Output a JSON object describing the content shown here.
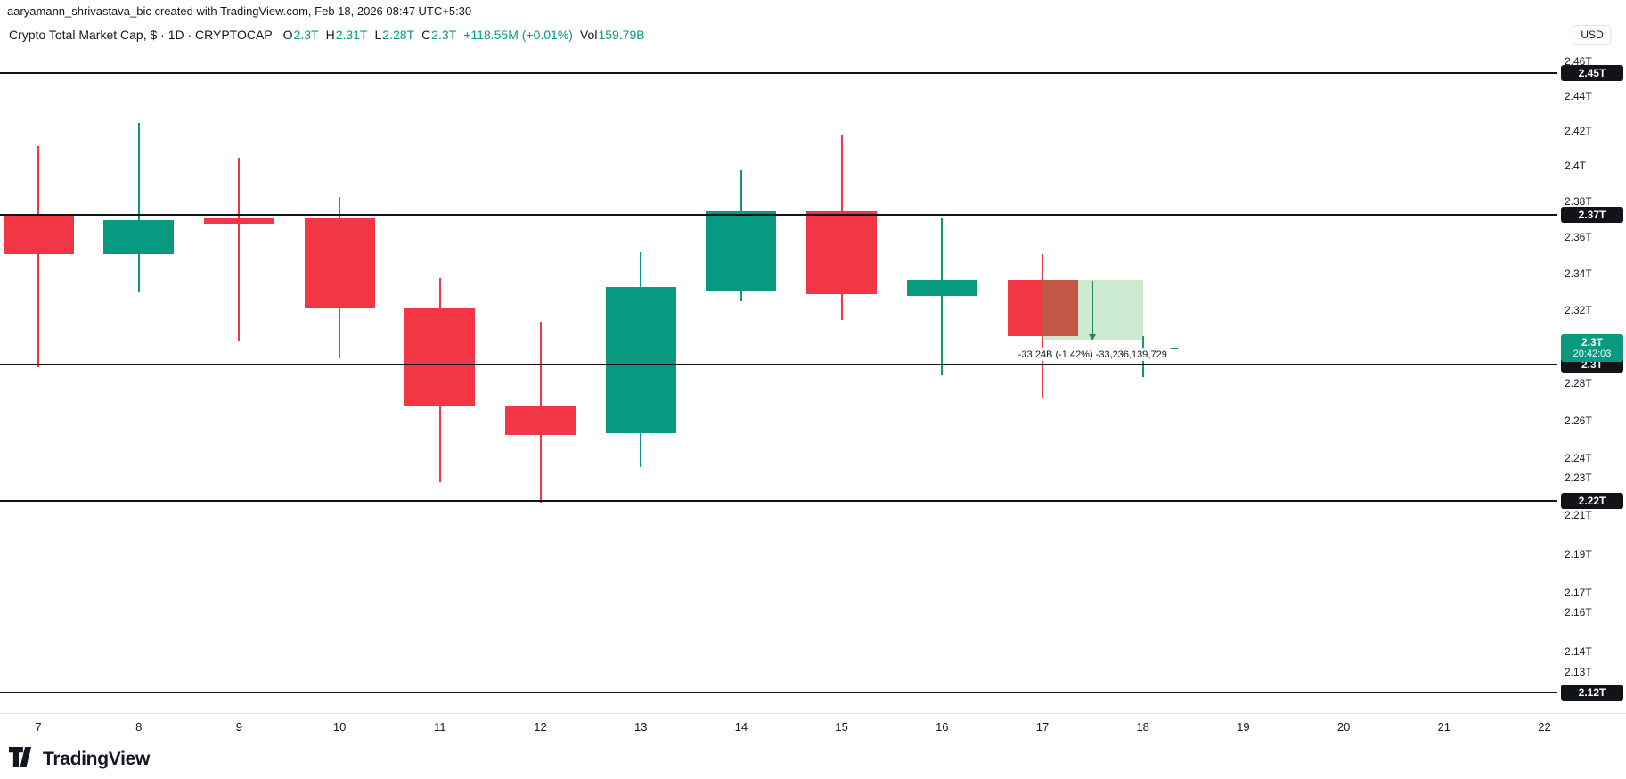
{
  "attribution": "aaryamann_shrivastava_bic created with TradingView.com, Feb 18, 2026 08:47 UTC+5:30",
  "legend": {
    "title": "Crypto Total Market Cap, $ · 1D · CRYPTOCAP",
    "o_label": "O",
    "o_value": "2.3T",
    "h_label": "H",
    "h_value": "2.31T",
    "l_label": "L",
    "l_value": "2.28T",
    "c_label": "C",
    "c_value": "2.3T",
    "change": "+118.55M (+0.01%)",
    "vol_label": "Vol",
    "vol_value": "159.79B"
  },
  "price_scale": {
    "currency": "USD",
    "ticks": [
      {
        "price": 2.46,
        "text": "2.46T"
      },
      {
        "price": 2.44,
        "text": "2.44T"
      },
      {
        "price": 2.42,
        "text": "2.42T"
      },
      {
        "price": 2.4,
        "text": "2.4T"
      },
      {
        "price": 2.38,
        "text": "2.38T"
      },
      {
        "price": 2.36,
        "text": "2.36T"
      },
      {
        "price": 2.34,
        "text": "2.34T"
      },
      {
        "price": 2.32,
        "text": "2.32T"
      },
      {
        "price": 2.3,
        "text": "2.3T"
      },
      {
        "price": 2.28,
        "text": "2.28T"
      },
      {
        "price": 2.26,
        "text": "2.26T"
      },
      {
        "price": 2.24,
        "text": "2.24T"
      },
      {
        "price": 2.23,
        "text": "2.23T"
      },
      {
        "price": 2.21,
        "text": "2.21T"
      },
      {
        "price": 2.19,
        "text": "2.19T"
      },
      {
        "price": 2.17,
        "text": "2.17T"
      },
      {
        "price": 2.16,
        "text": "2.16T"
      },
      {
        "price": 2.14,
        "text": "2.14T"
      },
      {
        "price": 2.13,
        "text": "2.13T"
      }
    ]
  },
  "time_axis": [
    "7",
    "8",
    "9",
    "10",
    "11",
    "12",
    "13",
    "14",
    "15",
    "16",
    "17",
    "18",
    "19",
    "20",
    "21",
    "22"
  ],
  "current_price": {
    "price": 2.2998,
    "text": "2.3T",
    "countdown": "20:42:03"
  },
  "drawings": {
    "horizontal_lines": [
      {
        "price": 2.454,
        "label": "2.45T"
      },
      {
        "price": 2.373,
        "label": "2.37T"
      },
      {
        "price": 2.2905,
        "label": "2.3T"
      },
      {
        "price": 2.218,
        "label": "2.22T"
      },
      {
        "price": 2.12,
        "label": "2.12T"
      }
    ],
    "price_range": {
      "from_day": "17",
      "to_day": "18",
      "from_price": 2.337,
      "to_price": 2.3038,
      "label": "-33.24B (-1.42%) -33,236,139,729"
    }
  },
  "colors": {
    "up": "#089981",
    "down": "#f23645",
    "drawing_line": "#101418",
    "range_fill": "rgba(76,175,80,0.28)",
    "range_arrow": "#178a63"
  },
  "footer": {
    "brand": "TradingView"
  },
  "chart_data": {
    "type": "candlestick",
    "title": "Crypto Total Market Cap",
    "symbol": "CRYPTOCAP",
    "interval": "1D",
    "currency": "USD",
    "scale": "log",
    "ylim": [
      2.12,
      2.46
    ],
    "unit": "trillion USD",
    "x": [
      "7",
      "8",
      "9",
      "10",
      "11",
      "12",
      "13",
      "14",
      "15",
      "16",
      "17",
      "18"
    ],
    "candles": [
      {
        "day": "7",
        "o": 2.373,
        "h": 2.412,
        "l": 2.289,
        "c": 2.351
      },
      {
        "day": "8",
        "o": 2.351,
        "h": 2.425,
        "l": 2.33,
        "c": 2.37
      },
      {
        "day": "9",
        "o": 2.371,
        "h": 2.405,
        "l": 2.303,
        "c": 2.368
      },
      {
        "day": "10",
        "o": 2.371,
        "h": 2.383,
        "l": 2.294,
        "c": 2.321
      },
      {
        "day": "11",
        "o": 2.321,
        "h": 2.338,
        "l": 2.228,
        "c": 2.268
      },
      {
        "day": "12",
        "o": 2.268,
        "h": 2.314,
        "l": 2.217,
        "c": 2.253
      },
      {
        "day": "13",
        "o": 2.254,
        "h": 2.352,
        "l": 2.236,
        "c": 2.333
      },
      {
        "day": "14",
        "o": 2.331,
        "h": 2.398,
        "l": 2.325,
        "c": 2.375
      },
      {
        "day": "15",
        "o": 2.375,
        "h": 2.418,
        "l": 2.315,
        "c": 2.329
      },
      {
        "day": "16",
        "o": 2.328,
        "h": 2.371,
        "l": 2.285,
        "c": 2.337
      },
      {
        "day": "17",
        "o": 2.337,
        "h": 2.351,
        "l": 2.273,
        "c": 2.306
      },
      {
        "day": "18",
        "o": 2.2996,
        "h": 2.3059,
        "l": 2.2837,
        "c": 2.2998
      }
    ]
  }
}
